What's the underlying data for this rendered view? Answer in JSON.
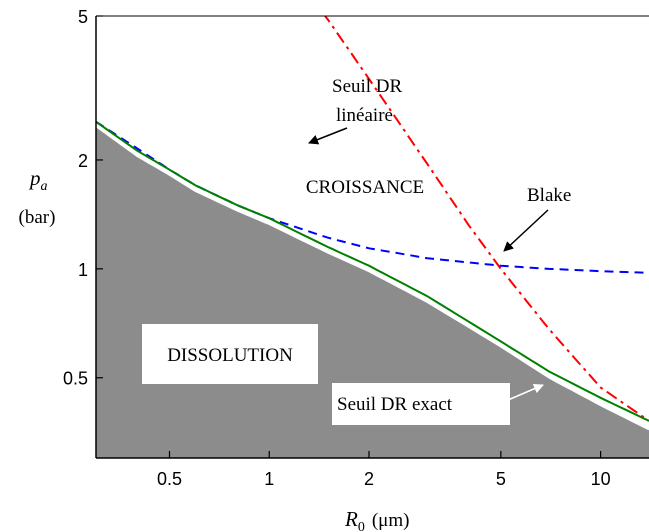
{
  "chart_data": {
    "type": "line",
    "x_scale": "log",
    "y_scale": "log",
    "xlim": [
      0.3,
      14
    ],
    "ylim": [
      0.3,
      5
    ],
    "xticks": [
      0.5,
      1,
      2,
      5,
      10
    ],
    "xtick_labels": [
      "0.5",
      "1",
      "2",
      "5",
      "10"
    ],
    "yticks": [
      0.5,
      1,
      2,
      5
    ],
    "ytick_labels": [
      "0.5",
      "1",
      "2",
      "5"
    ],
    "xlabel_main": "R",
    "xlabel_sub": "0",
    "xlabel_unit": "(μm)",
    "ylabel_main": "p",
    "ylabel_sub": "a",
    "ylabel_unit": "(bar)",
    "grid": false,
    "regions": [
      {
        "label": "DISSOLUTION",
        "fill": "#8c8c8c"
      },
      {
        "label": "CROISSANCE",
        "fill": "#ffffff"
      }
    ],
    "series": [
      {
        "name": "Seuil DR linéaire",
        "color": "#ff0000",
        "style": "dash-dot",
        "x": [
          1.3,
          1.5,
          2,
          3,
          4,
          5,
          7,
          10,
          14
        ],
        "y": [
          5.8,
          4.9,
          3.35,
          1.95,
          1.32,
          1.0,
          0.68,
          0.47,
          0.38
        ]
      },
      {
        "name": "Blake",
        "color": "#0000ff",
        "style": "dashed",
        "x": [
          0.3,
          0.4,
          0.5,
          0.6,
          0.8,
          1,
          1.5,
          2,
          3,
          5,
          7,
          10,
          14
        ],
        "y": [
          2.55,
          2.15,
          1.88,
          1.7,
          1.5,
          1.38,
          1.22,
          1.14,
          1.07,
          1.02,
          1.0,
          0.985,
          0.975
        ]
      },
      {
        "name": "Seuil DR exact",
        "color": "#008000",
        "style": "solid",
        "x": [
          0.3,
          0.4,
          0.5,
          0.6,
          0.8,
          1,
          1.5,
          2,
          3,
          5,
          7,
          10,
          14
        ],
        "y": [
          2.55,
          2.12,
          1.88,
          1.7,
          1.5,
          1.38,
          1.15,
          1.02,
          0.84,
          0.63,
          0.52,
          0.44,
          0.38
        ]
      }
    ],
    "boundary": {
      "color": "#ffffff",
      "x": [
        0.3,
        0.4,
        0.5,
        0.6,
        0.8,
        1,
        1.5,
        2,
        3,
        5,
        7,
        10,
        14
      ],
      "y": [
        2.48,
        2.05,
        1.82,
        1.64,
        1.45,
        1.33,
        1.11,
        0.985,
        0.81,
        0.61,
        0.5,
        0.42,
        0.36
      ]
    },
    "annotations": [
      {
        "text": "Seuil DR",
        "arrow_color": "#000000"
      },
      {
        "text": "linéaire",
        "arrow_color": "#000000"
      },
      {
        "text": "Blake",
        "arrow_color": "#000000"
      },
      {
        "text": "Seuil DR exact",
        "arrow_color": "#ffffff"
      }
    ]
  }
}
